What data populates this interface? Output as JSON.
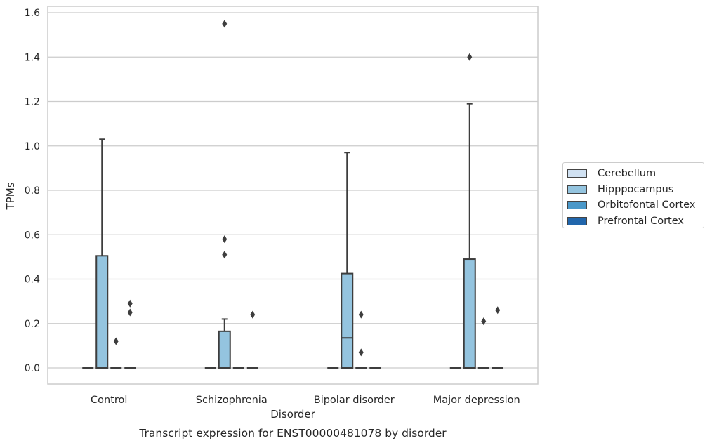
{
  "chart_data": {
    "type": "box",
    "xlabel": "Disorder",
    "ylabel": "TPMs",
    "caption": "Transcript expression for ENST00000481078 by disorder",
    "categories": [
      "Control",
      "Schizophrenia",
      "Bipolar disorder",
      "Major depression"
    ],
    "ylim": [
      -0.075,
      1.63
    ],
    "yticks": [
      "0.0",
      "0.2",
      "0.4",
      "0.6",
      "0.8",
      "1.0",
      "1.2",
      "1.4",
      "1.6"
    ],
    "ytick_values": [
      0,
      0.2,
      0.4,
      0.6,
      0.8,
      1.0,
      1.2,
      1.4,
      1.6
    ],
    "grid": "horizontal",
    "legend_position": "right",
    "series": [
      {
        "name": "Cerebellum",
        "color": "#d0e1f2",
        "boxes": [
          {
            "q1": 0,
            "median": 0,
            "q3": 0,
            "whisker_low": 0,
            "whisker_high": 0,
            "outliers": []
          },
          {
            "q1": 0,
            "median": 0,
            "q3": 0,
            "whisker_low": 0,
            "whisker_high": 0,
            "outliers": []
          },
          {
            "q1": 0,
            "median": 0,
            "q3": 0,
            "whisker_low": 0,
            "whisker_high": 0,
            "outliers": []
          },
          {
            "q1": 0,
            "median": 0,
            "q3": 0,
            "whisker_low": 0,
            "whisker_high": 0,
            "outliers": []
          }
        ]
      },
      {
        "name": "Hipppocampus",
        "color": "#94c4df",
        "boxes": [
          {
            "q1": 0,
            "median": 0,
            "q3": 0.505,
            "whisker_low": 0,
            "whisker_high": 1.03,
            "outliers": []
          },
          {
            "q1": 0,
            "median": 0,
            "q3": 0.165,
            "whisker_low": 0,
            "whisker_high": 0.22,
            "outliers": [
              1.55,
              0.58,
              0.51
            ]
          },
          {
            "q1": 0,
            "median": 0.135,
            "q3": 0.425,
            "whisker_low": 0,
            "whisker_high": 0.97,
            "outliers": []
          },
          {
            "q1": 0,
            "median": 0,
            "q3": 0.49,
            "whisker_low": 0,
            "whisker_high": 1.19,
            "outliers": [
              1.4
            ]
          }
        ]
      },
      {
        "name": "Orbitofontal Cortex",
        "color": "#4a98c9",
        "boxes": [
          {
            "q1": 0,
            "median": 0,
            "q3": 0,
            "whisker_low": 0,
            "whisker_high": 0,
            "outliers": [
              0.12
            ]
          },
          {
            "q1": 0,
            "median": 0,
            "q3": 0,
            "whisker_low": 0,
            "whisker_high": 0,
            "outliers": []
          },
          {
            "q1": 0,
            "median": 0,
            "q3": 0,
            "whisker_low": 0,
            "whisker_high": 0,
            "outliers": [
              0.24,
              0.07
            ]
          },
          {
            "q1": 0,
            "median": 0,
            "q3": 0,
            "whisker_low": 0,
            "whisker_high": 0,
            "outliers": [
              0.21
            ]
          }
        ]
      },
      {
        "name": "Prefrontal Cortex",
        "color": "#2166ac",
        "boxes": [
          {
            "q1": 0,
            "median": 0,
            "q3": 0,
            "whisker_low": 0,
            "whisker_high": 0,
            "outliers": [
              0.29,
              0.25
            ]
          },
          {
            "q1": 0,
            "median": 0,
            "q3": 0,
            "whisker_low": 0,
            "whisker_high": 0,
            "outliers": [
              0.24
            ]
          },
          {
            "q1": 0,
            "median": 0,
            "q3": 0,
            "whisker_low": 0,
            "whisker_high": 0,
            "outliers": []
          },
          {
            "q1": 0,
            "median": 0,
            "q3": 0,
            "whisker_low": 0,
            "whisker_high": 0,
            "outliers": [
              0.26
            ]
          }
        ]
      }
    ]
  }
}
